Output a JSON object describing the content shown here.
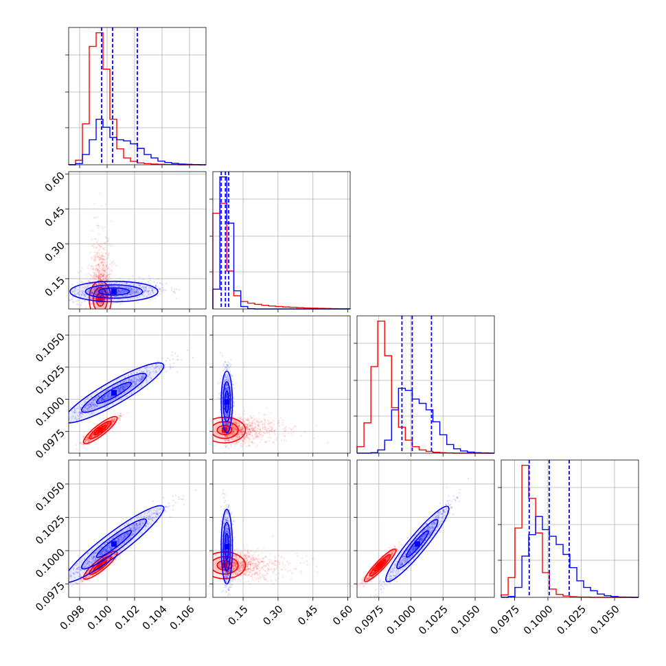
{
  "chart_data": {
    "type": "corner",
    "title": "",
    "grid": true,
    "series": [
      {
        "color": "#ff0000"
      },
      {
        "color": "#0000ff"
      }
    ],
    "parameters": [
      {
        "label": "",
        "range": [
          0.0972,
          0.1072
        ],
        "ticks": [
          0.098,
          0.1,
          0.102,
          0.104,
          0.106
        ],
        "tick_labels": [
          "0.098",
          "0.100",
          "0.102",
          "0.104",
          "0.106"
        ]
      },
      {
        "label": "",
        "range": [
          0.02,
          0.61
        ],
        "ticks": [
          0.15,
          0.3,
          0.45,
          0.6
        ],
        "tick_labels": [
          "0.15",
          "0.30",
          "0.45",
          "0.60"
        ]
      },
      {
        "label": "",
        "range": [
          0.0958,
          0.1065
        ],
        "ticks": [
          0.0975,
          0.1,
          0.1025,
          0.105
        ],
        "tick_labels": [
          "0.0975",
          "0.1000",
          "0.1025",
          "0.1050"
        ]
      },
      {
        "label": "",
        "range": [
          0.0965,
          0.1068
        ],
        "ticks": [
          0.0975,
          0.1,
          0.1025,
          0.105
        ],
        "tick_labels": [
          "0.0975",
          "0.1000",
          "0.1025",
          "0.1050"
        ]
      }
    ],
    "histograms": [
      {
        "index": 0,
        "bin_edges": [
          0.0972,
          0.0977,
          0.0982,
          0.0987,
          0.0992,
          0.0997,
          0.1002,
          0.1007,
          0.1012,
          0.1017,
          0.1022,
          0.1027,
          0.1032,
          0.1037,
          0.1042,
          0.1047,
          0.1052,
          0.1057,
          0.1062,
          0.1067,
          0.1072
        ],
        "counts": {
          "red": [
            1,
            20,
            180,
            520,
            580,
            420,
            200,
            70,
            30,
            15,
            8,
            5,
            3,
            2,
            1,
            1,
            0,
            0,
            0,
            0
          ],
          "blue": [
            0,
            5,
            45,
            110,
            200,
            165,
            120,
            110,
            105,
            92,
            72,
            45,
            30,
            16,
            10,
            6,
            3,
            2,
            1,
            0
          ]
        },
        "quantiles": [
          0.0996,
          0.1004,
          0.1022
        ]
      },
      {
        "index": 1,
        "bin_edges": [
          0.02,
          0.05,
          0.08,
          0.11,
          0.14,
          0.17,
          0.2,
          0.23,
          0.26,
          0.29,
          0.32,
          0.35,
          0.38,
          0.41,
          0.44,
          0.47,
          0.5,
          0.53,
          0.56,
          0.59,
          0.61
        ],
        "counts": {
          "red": [
            580,
            640,
            230,
            80,
            45,
            35,
            28,
            22,
            18,
            15,
            12,
            10,
            8,
            6,
            5,
            4,
            3,
            2,
            1,
            1
          ],
          "blue": [
            120,
            800,
            520,
            110,
            15,
            2,
            0,
            0,
            0,
            0,
            0,
            0,
            0,
            0,
            0,
            0,
            0,
            0,
            0,
            0
          ]
        },
        "quantiles": [
          0.056,
          0.074,
          0.088
        ]
      },
      {
        "index": 2,
        "bin_edges": [
          0.0958,
          0.09634,
          0.09688,
          0.09741,
          0.09795,
          0.09849,
          0.09903,
          0.09956,
          0.1001,
          0.10064,
          0.10118,
          0.10171,
          0.10225,
          0.10279,
          0.10333,
          0.10386,
          0.1044,
          0.10494,
          0.10548,
          0.10601,
          0.1065
        ],
        "counts": {
          "red": [
            30,
            140,
            400,
            610,
            450,
            210,
            120,
            60,
            30,
            15,
            8,
            4,
            2,
            1,
            0,
            0,
            0,
            0,
            0,
            0
          ],
          "blue": [
            0,
            0,
            2,
            15,
            60,
            200,
            300,
            290,
            250,
            230,
            200,
            145,
            85,
            40,
            20,
            10,
            5,
            2,
            1,
            0
          ]
        },
        "quantiles": [
          0.0993,
          0.1001,
          0.1016
        ]
      },
      {
        "index": 3,
        "bin_edges": [
          0.0965,
          0.09702,
          0.09753,
          0.09805,
          0.09856,
          0.09908,
          0.09959,
          0.10011,
          0.10062,
          0.10114,
          0.10165,
          0.10217,
          0.10268,
          0.1032,
          0.10371,
          0.10423,
          0.10474,
          0.10526,
          0.10577,
          0.10629,
          0.1068
        ],
        "counts": {
          "red": [
            15,
            120,
            420,
            800,
            600,
            390,
            150,
            50,
            18,
            8,
            4,
            2,
            1,
            0,
            0,
            0,
            0,
            0,
            0,
            0
          ],
          "blue": [
            0,
            5,
            60,
            250,
            380,
            490,
            410,
            370,
            320,
            260,
            180,
            100,
            60,
            40,
            20,
            10,
            5,
            2,
            1,
            0
          ]
        },
        "quantiles": [
          0.0986,
          0.1001,
          0.1016
        ]
      }
    ],
    "scatter_2d": [
      {
        "x": 0,
        "y": 1,
        "red": {
          "mean": [
            0.0995,
            0.06
          ],
          "sd": [
            0.0004,
            0.04
          ],
          "corr": 0.0
        },
        "blue": {
          "mean": [
            0.1005,
            0.095
          ],
          "sd": [
            0.0016,
            0.022
          ],
          "corr": 0.25
        }
      },
      {
        "x": 0,
        "y": 2,
        "red": {
          "mean": [
            0.0995,
            0.0976
          ],
          "sd": [
            0.0006,
            0.0005
          ],
          "corr": 0.92
        },
        "blue": {
          "mean": [
            0.1005,
            0.1005
          ],
          "sd": [
            0.0018,
            0.0011
          ],
          "corr": 0.95
        }
      },
      {
        "x": 1,
        "y": 2,
        "red": {
          "mean": [
            0.07,
            0.0976
          ],
          "sd": [
            0.045,
            0.0005
          ],
          "corr": 0.05
        },
        "blue": {
          "mean": [
            0.08,
            0.0998
          ],
          "sd": [
            0.012,
            0.0012
          ],
          "corr": 0.0
        }
      },
      {
        "x": 0,
        "y": 3,
        "red": {
          "mean": [
            0.0995,
            0.0989
          ],
          "sd": [
            0.0006,
            0.0005
          ],
          "corr": 0.92
        },
        "blue": {
          "mean": [
            0.1005,
            0.1005
          ],
          "sd": [
            0.0018,
            0.0014
          ],
          "corr": 0.96
        }
      },
      {
        "x": 1,
        "y": 3,
        "red": {
          "mean": [
            0.07,
            0.0989
          ],
          "sd": [
            0.045,
            0.0005
          ],
          "corr": 0.05
        },
        "blue": {
          "mean": [
            0.08,
            0.1003
          ],
          "sd": [
            0.012,
            0.0014
          ],
          "corr": 0.0
        }
      },
      {
        "x": 2,
        "y": 3,
        "red": {
          "mean": [
            0.0976,
            0.0989
          ],
          "sd": [
            0.0006,
            0.0006
          ],
          "corr": 0.95
        },
        "blue": {
          "mean": [
            0.1005,
            0.1005
          ],
          "sd": [
            0.0012,
            0.0014
          ],
          "corr": 0.96
        }
      }
    ]
  }
}
